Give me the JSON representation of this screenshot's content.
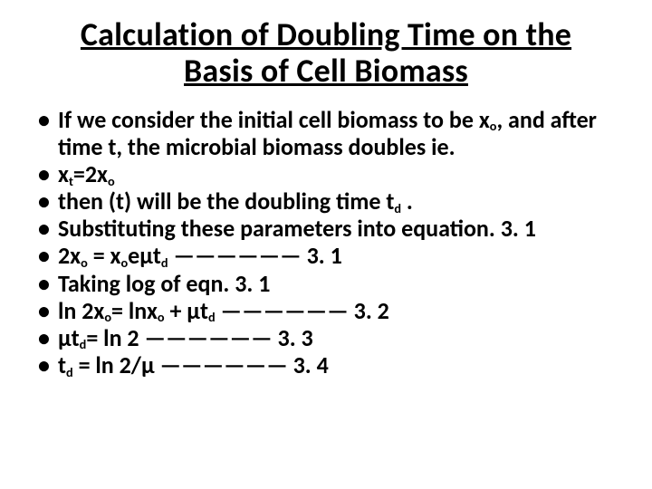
{
  "title_line1": "Calculation of Doubling Time on the",
  "title_line2": "Basis of Cell Biomass",
  "bullets": {
    "b0a": "If we consider the initial cell biomass to be x",
    "b0b": ", and after time t, the microbial biomass doubles ie.",
    "b1a": "x",
    "b1b": "=2x",
    "b2a": "then (t) will be the doubling time t",
    "b2b": " .",
    "b3": "Substituting these parameters into equation. 3. 1",
    "b4a": "2x",
    "b4b": " = x",
    "b4c": "eµt",
    "b4d": " —————— 3. 1",
    "b5": "Taking log of eqn. 3. 1",
    "b6a": "ln 2x",
    "b6b": "= lnx",
    "b6c": " + µt",
    "b6d": " —————— 3. 2",
    "b7a": "µt",
    "b7b": "= ln 2 —————— 3. 3",
    "b8a": "t",
    "b8b": " = ln 2/µ —————— 3. 4"
  },
  "subs": {
    "o": "o",
    "t": "t",
    "d": "d"
  }
}
